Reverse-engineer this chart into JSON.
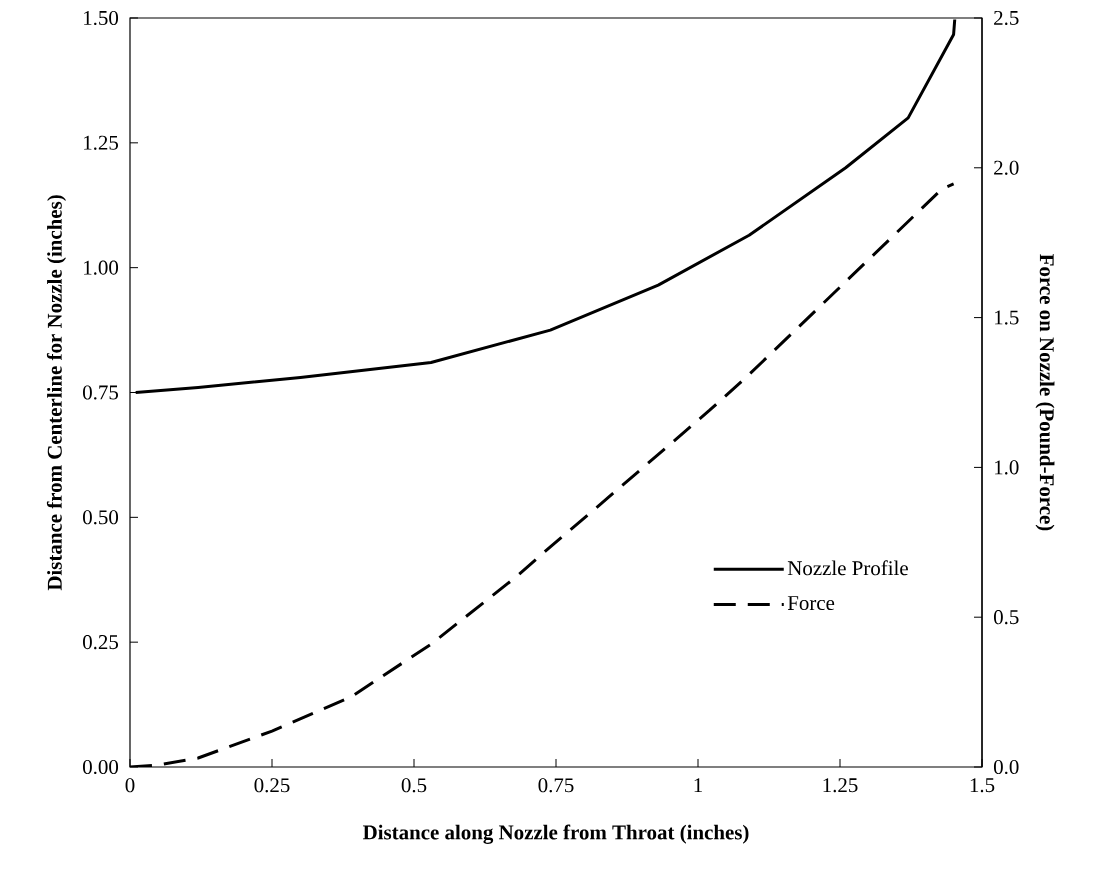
{
  "chart_data": {
    "type": "line",
    "xlabel": "Distance along Nozzle from Throat (inches)",
    "ylabel": "Distance from Centerline for Nozzle (inches)",
    "y2label": "Force on Nozzle (Pound-Force)",
    "xlim": [
      0,
      1.5
    ],
    "xticks": [
      0,
      0.25,
      0.5,
      0.75,
      1,
      1.25,
      1.5
    ],
    "ylim": [
      0,
      1.5
    ],
    "yticks": [
      {
        "value": 0,
        "label": "0.00"
      },
      {
        "value": 0.25,
        "label": "0.25"
      },
      {
        "value": 0.5,
        "label": "0.50"
      },
      {
        "value": 0.75,
        "label": "0.75"
      },
      {
        "value": 1,
        "label": "1.00"
      },
      {
        "value": 1.25,
        "label": "1.25"
      },
      {
        "value": 1.5,
        "label": "1.50"
      }
    ],
    "y2lim": [
      0,
      2.5
    ],
    "y2ticks": [
      {
        "value": 0,
        "label": "0.0"
      },
      {
        "value": 0.5,
        "label": "0.5"
      },
      {
        "value": 1,
        "label": "1.0"
      },
      {
        "value": 1.5,
        "label": "1.5"
      },
      {
        "value": 2,
        "label": "2.0"
      },
      {
        "value": 2.5,
        "label": "2.5"
      }
    ],
    "legend": "bottom right",
    "marker": "none",
    "line_style": "solid",
    "series": [
      {
        "name": "Nozzle Profile",
        "color": "#000000",
        "x": [
          0.01,
          0.12,
          0.3,
          0.53,
          0.74,
          0.93,
          1.09,
          1.26,
          1.37,
          1.45,
          1.452
        ],
        "values": [
          0.75,
          0.76,
          0.78,
          0.81,
          0.875,
          0.965,
          1.065,
          1.2,
          1.3,
          1.467,
          1.497
        ]
      },
      {
        "name": "Force",
        "color": "#000000",
        "axis": "y2",
        "line_style": "dashed",
        "x": [
          0,
          0.05,
          0.12,
          0.25,
          0.39,
          0.53,
          0.68,
          0.74,
          0.83,
          1.02,
          1.09,
          1.26,
          1.43,
          1.45
        ],
        "values": [
          0,
          0.007,
          0.03,
          0.12,
          0.235,
          0.41,
          0.635,
          0.735,
          0.88,
          1.19,
          1.31,
          1.62,
          1.93,
          1.946
        ]
      }
    ]
  }
}
